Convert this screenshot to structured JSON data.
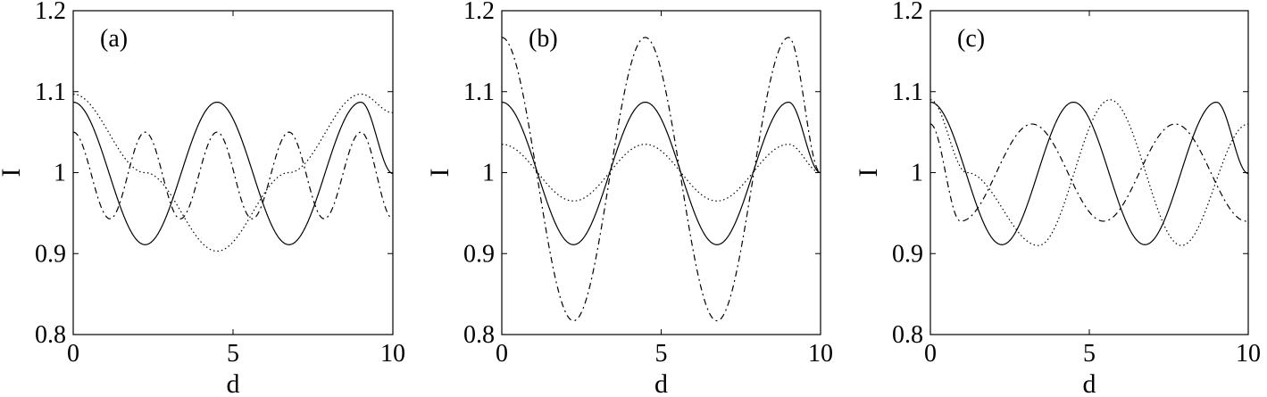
{
  "chart_data": [
    {
      "type": "line",
      "tag": "(a)",
      "xlabel": "d",
      "ylabel": "I",
      "xlim": [
        0,
        10
      ],
      "ylim": [
        0.8,
        1.2
      ],
      "xticks": [
        0,
        5,
        10
      ],
      "xtick_labels": [
        "0",
        "5",
        "10"
      ],
      "yticks": [
        0.8,
        0.9,
        1.0,
        1.1,
        1.2
      ],
      "ytick_labels": [
        "0.8",
        "0.9",
        "1",
        "1.1",
        "1.2"
      ],
      "grid": false,
      "colors": {
        "line": "#000000"
      },
      "series": [
        {
          "style": "solid",
          "x": [
            0,
            2.25,
            4.5,
            6.75,
            9.0,
            10
          ],
          "y": [
            1.087,
            0.911,
            1.087,
            0.911,
            1.087,
            0.999
          ]
        },
        {
          "style": "dashed",
          "x": [
            0,
            1.15,
            2.25,
            3.35,
            4.5,
            5.6,
            6.75,
            7.85,
            9.0,
            10
          ],
          "y": [
            1.05,
            0.943,
            1.05,
            0.943,
            1.05,
            0.943,
            1.05,
            0.943,
            1.05,
            0.943
          ]
        },
        {
          "style": "dotted",
          "x": [
            0,
            2.25,
            4.5,
            6.75,
            9.0,
            10
          ],
          "y": [
            1.097,
            1.0,
            0.903,
            1.0,
            1.097,
            1.074
          ]
        }
      ]
    },
    {
      "type": "line",
      "tag": "(b)",
      "xlabel": "d",
      "ylabel": "I",
      "xlim": [
        0,
        10
      ],
      "ylim": [
        0.8,
        1.2
      ],
      "xticks": [
        0,
        5,
        10
      ],
      "xtick_labels": [
        "0",
        "5",
        "10"
      ],
      "yticks": [
        0.8,
        0.9,
        1.0,
        1.1,
        1.2
      ],
      "ytick_labels": [
        "0.8",
        "0.9",
        "1",
        "1.1",
        "1.2"
      ],
      "grid": false,
      "colors": {
        "line": "#000000"
      },
      "series": [
        {
          "style": "solid",
          "x": [
            0,
            2.25,
            4.5,
            6.75,
            9.0,
            10
          ],
          "y": [
            1.087,
            0.911,
            1.087,
            0.911,
            1.087,
            1.0
          ]
        },
        {
          "style": "dashed",
          "x": [
            0,
            2.25,
            4.5,
            6.75,
            9.0,
            10
          ],
          "y": [
            1.167,
            0.817,
            1.167,
            0.817,
            1.167,
            1.0
          ]
        },
        {
          "style": "dotted",
          "x": [
            0,
            2.25,
            4.5,
            6.75,
            9.0,
            10
          ],
          "y": [
            1.035,
            0.965,
            1.035,
            0.965,
            1.035,
            1.0
          ]
        }
      ]
    },
    {
      "type": "line",
      "tag": "(c)",
      "xlabel": "d",
      "ylabel": "I",
      "xlim": [
        0,
        10
      ],
      "ylim": [
        0.8,
        1.2
      ],
      "xticks": [
        0,
        5,
        10
      ],
      "xtick_labels": [
        "0",
        "5",
        "10"
      ],
      "yticks": [
        0.8,
        0.9,
        1.0,
        1.1,
        1.2
      ],
      "ytick_labels": [
        "0.8",
        "0.9",
        "1",
        "1.1",
        "1.2"
      ],
      "grid": false,
      "colors": {
        "line": "#000000"
      },
      "series": [
        {
          "style": "solid",
          "x": [
            0,
            2.25,
            4.5,
            6.75,
            9.0,
            10
          ],
          "y": [
            1.087,
            0.911,
            1.087,
            0.911,
            1.087,
            0.999
          ]
        },
        {
          "style": "dashed",
          "x": [
            0,
            0.95,
            3.2,
            5.45,
            7.7,
            9.95,
            10
          ],
          "y": [
            1.06,
            0.94,
            1.06,
            0.94,
            1.06,
            0.94,
            0.94
          ]
        },
        {
          "style": "dotted",
          "x": [
            0,
            1.15,
            3.4,
            5.65,
            7.9,
            10
          ],
          "y": [
            1.09,
            1.0,
            0.91,
            1.09,
            0.91,
            1.06
          ]
        }
      ]
    }
  ]
}
